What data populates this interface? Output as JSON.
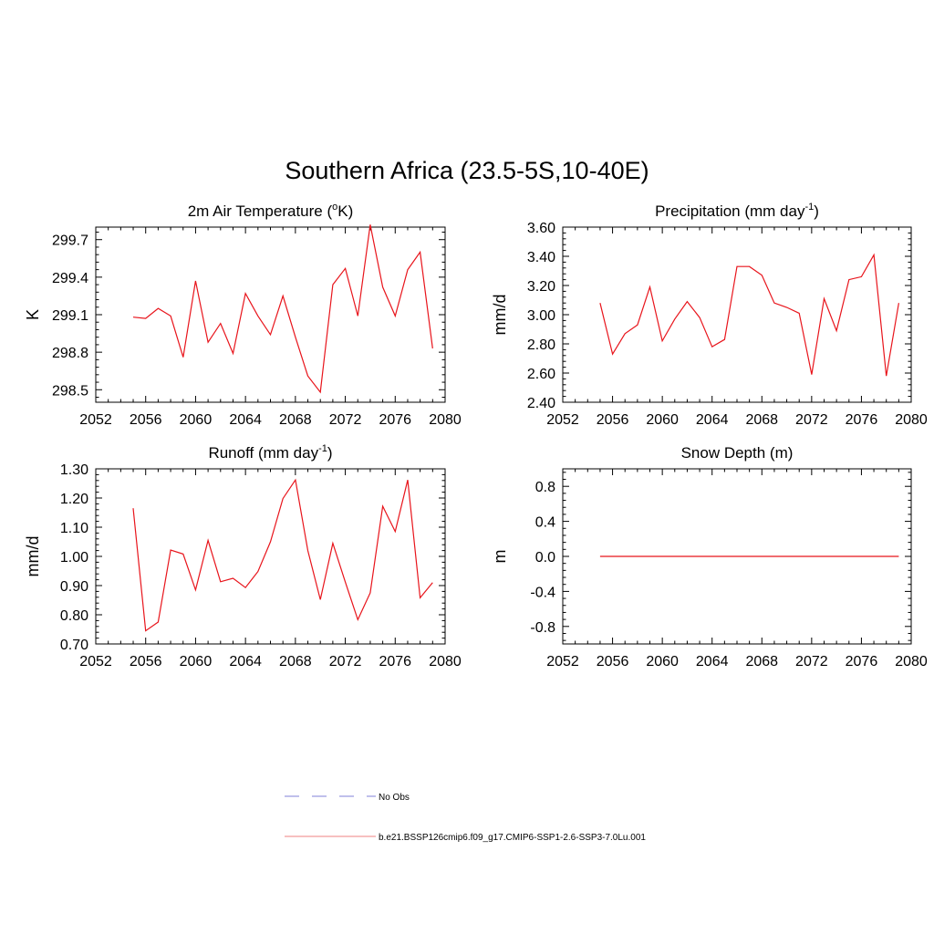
{
  "figure": {
    "title": "Southern Africa (23.5-5S,10-40E)"
  },
  "series_color": "#e8141b",
  "legend": {
    "entries": [
      {
        "label": "No Obs",
        "style": "dashed",
        "color": "#9a9ae0"
      },
      {
        "label": "b.e21.BSSP126cmip6.f09_g17.CMIP6-SSP1-2.6-SSP3-7.0Lu.001",
        "style": "solid",
        "color": "#f29a9a"
      }
    ]
  },
  "chart_data": [
    {
      "type": "line",
      "title": "2m Air Temperature (",
      "title_sup": "o",
      "title_tail": "K)",
      "ylabel": "K",
      "xlim": [
        2052,
        2080
      ],
      "xticks": [
        2052,
        2056,
        2060,
        2064,
        2068,
        2072,
        2076,
        2080
      ],
      "ylim": [
        298.4,
        299.8
      ],
      "yticks": [
        298.5,
        298.8,
        299.1,
        299.4,
        299.7
      ],
      "ytick_labels": [
        "298.5",
        "298.8",
        "299.1",
        "299.4",
        "299.7"
      ],
      "x": [
        2055,
        2056,
        2057,
        2058,
        2059,
        2060,
        2061,
        2062,
        2063,
        2064,
        2065,
        2066,
        2067,
        2068,
        2069,
        2070,
        2071,
        2072,
        2073,
        2074,
        2075,
        2076,
        2077,
        2078,
        2079
      ],
      "values": [
        299.08,
        299.07,
        299.15,
        299.09,
        298.76,
        299.37,
        298.88,
        299.03,
        298.79,
        299.27,
        299.09,
        298.94,
        299.25,
        298.92,
        298.61,
        298.48,
        299.34,
        299.47,
        299.09,
        299.82,
        299.32,
        299.09,
        299.46,
        299.6,
        298.83
      ]
    },
    {
      "type": "line",
      "title": "Precipitation (mm day",
      "title_sup": "-1",
      "title_tail": ")",
      "ylabel": "mm/d",
      "xlim": [
        2052,
        2080
      ],
      "xticks": [
        2052,
        2056,
        2060,
        2064,
        2068,
        2072,
        2076,
        2080
      ],
      "ylim": [
        2.4,
        3.6
      ],
      "yticks": [
        2.4,
        2.6,
        2.8,
        3.0,
        3.2,
        3.4,
        3.6
      ],
      "ytick_labels": [
        "2.40",
        "2.60",
        "2.80",
        "3.00",
        "3.20",
        "3.40",
        "3.60"
      ],
      "x": [
        2055,
        2056,
        2057,
        2058,
        2059,
        2060,
        2061,
        2062,
        2063,
        2064,
        2065,
        2066,
        2067,
        2068,
        2069,
        2070,
        2071,
        2072,
        2073,
        2074,
        2075,
        2076,
        2077,
        2078,
        2079
      ],
      "values": [
        3.08,
        2.73,
        2.87,
        2.93,
        3.19,
        2.82,
        2.97,
        3.09,
        2.98,
        2.78,
        2.83,
        3.33,
        3.33,
        3.27,
        3.08,
        3.05,
        3.01,
        2.59,
        3.11,
        2.89,
        3.24,
        3.26,
        3.41,
        2.58,
        3.08
      ]
    },
    {
      "type": "line",
      "title": "Runoff (mm day",
      "title_sup": "-1",
      "title_tail": ")",
      "ylabel": "mm/d",
      "xlim": [
        2052,
        2080
      ],
      "xticks": [
        2052,
        2056,
        2060,
        2064,
        2068,
        2072,
        2076,
        2080
      ],
      "ylim": [
        0.7,
        1.3
      ],
      "yticks": [
        0.7,
        0.8,
        0.9,
        1.0,
        1.1,
        1.2,
        1.3
      ],
      "ytick_labels": [
        "0.70",
        "0.80",
        "0.90",
        "1.00",
        "1.10",
        "1.20",
        "1.30"
      ],
      "x": [
        2055,
        2056,
        2057,
        2058,
        2059,
        2060,
        2061,
        2062,
        2063,
        2064,
        2065,
        2066,
        2067,
        2068,
        2069,
        2070,
        2071,
        2072,
        2073,
        2074,
        2075,
        2076,
        2077,
        2078,
        2079
      ],
      "values": [
        1.165,
        0.745,
        0.775,
        1.022,
        1.008,
        0.885,
        1.055,
        0.913,
        0.925,
        0.893,
        0.948,
        1.05,
        1.198,
        1.262,
        1.02,
        0.852,
        1.045,
        0.912,
        0.783,
        0.875,
        1.172,
        1.085,
        1.262,
        0.858,
        0.91
      ]
    },
    {
      "type": "line",
      "title": "Snow Depth (m)",
      "title_sup": "",
      "title_tail": "",
      "ylabel": "m",
      "xlim": [
        2052,
        2080
      ],
      "xticks": [
        2052,
        2056,
        2060,
        2064,
        2068,
        2072,
        2076,
        2080
      ],
      "ylim": [
        -1.0,
        1.0
      ],
      "yticks": [
        -0.8,
        -0.4,
        0.0,
        0.4,
        0.8
      ],
      "ytick_labels": [
        "-0.8",
        "-0.4",
        "0.0",
        "0.4",
        "0.8"
      ],
      "x": [
        2055,
        2056,
        2057,
        2058,
        2059,
        2060,
        2061,
        2062,
        2063,
        2064,
        2065,
        2066,
        2067,
        2068,
        2069,
        2070,
        2071,
        2072,
        2073,
        2074,
        2075,
        2076,
        2077,
        2078,
        2079
      ],
      "values": [
        0,
        0,
        0,
        0,
        0,
        0,
        0,
        0,
        0,
        0,
        0,
        0,
        0,
        0,
        0,
        0,
        0,
        0,
        0,
        0,
        0,
        0,
        0,
        0,
        0
      ]
    }
  ]
}
